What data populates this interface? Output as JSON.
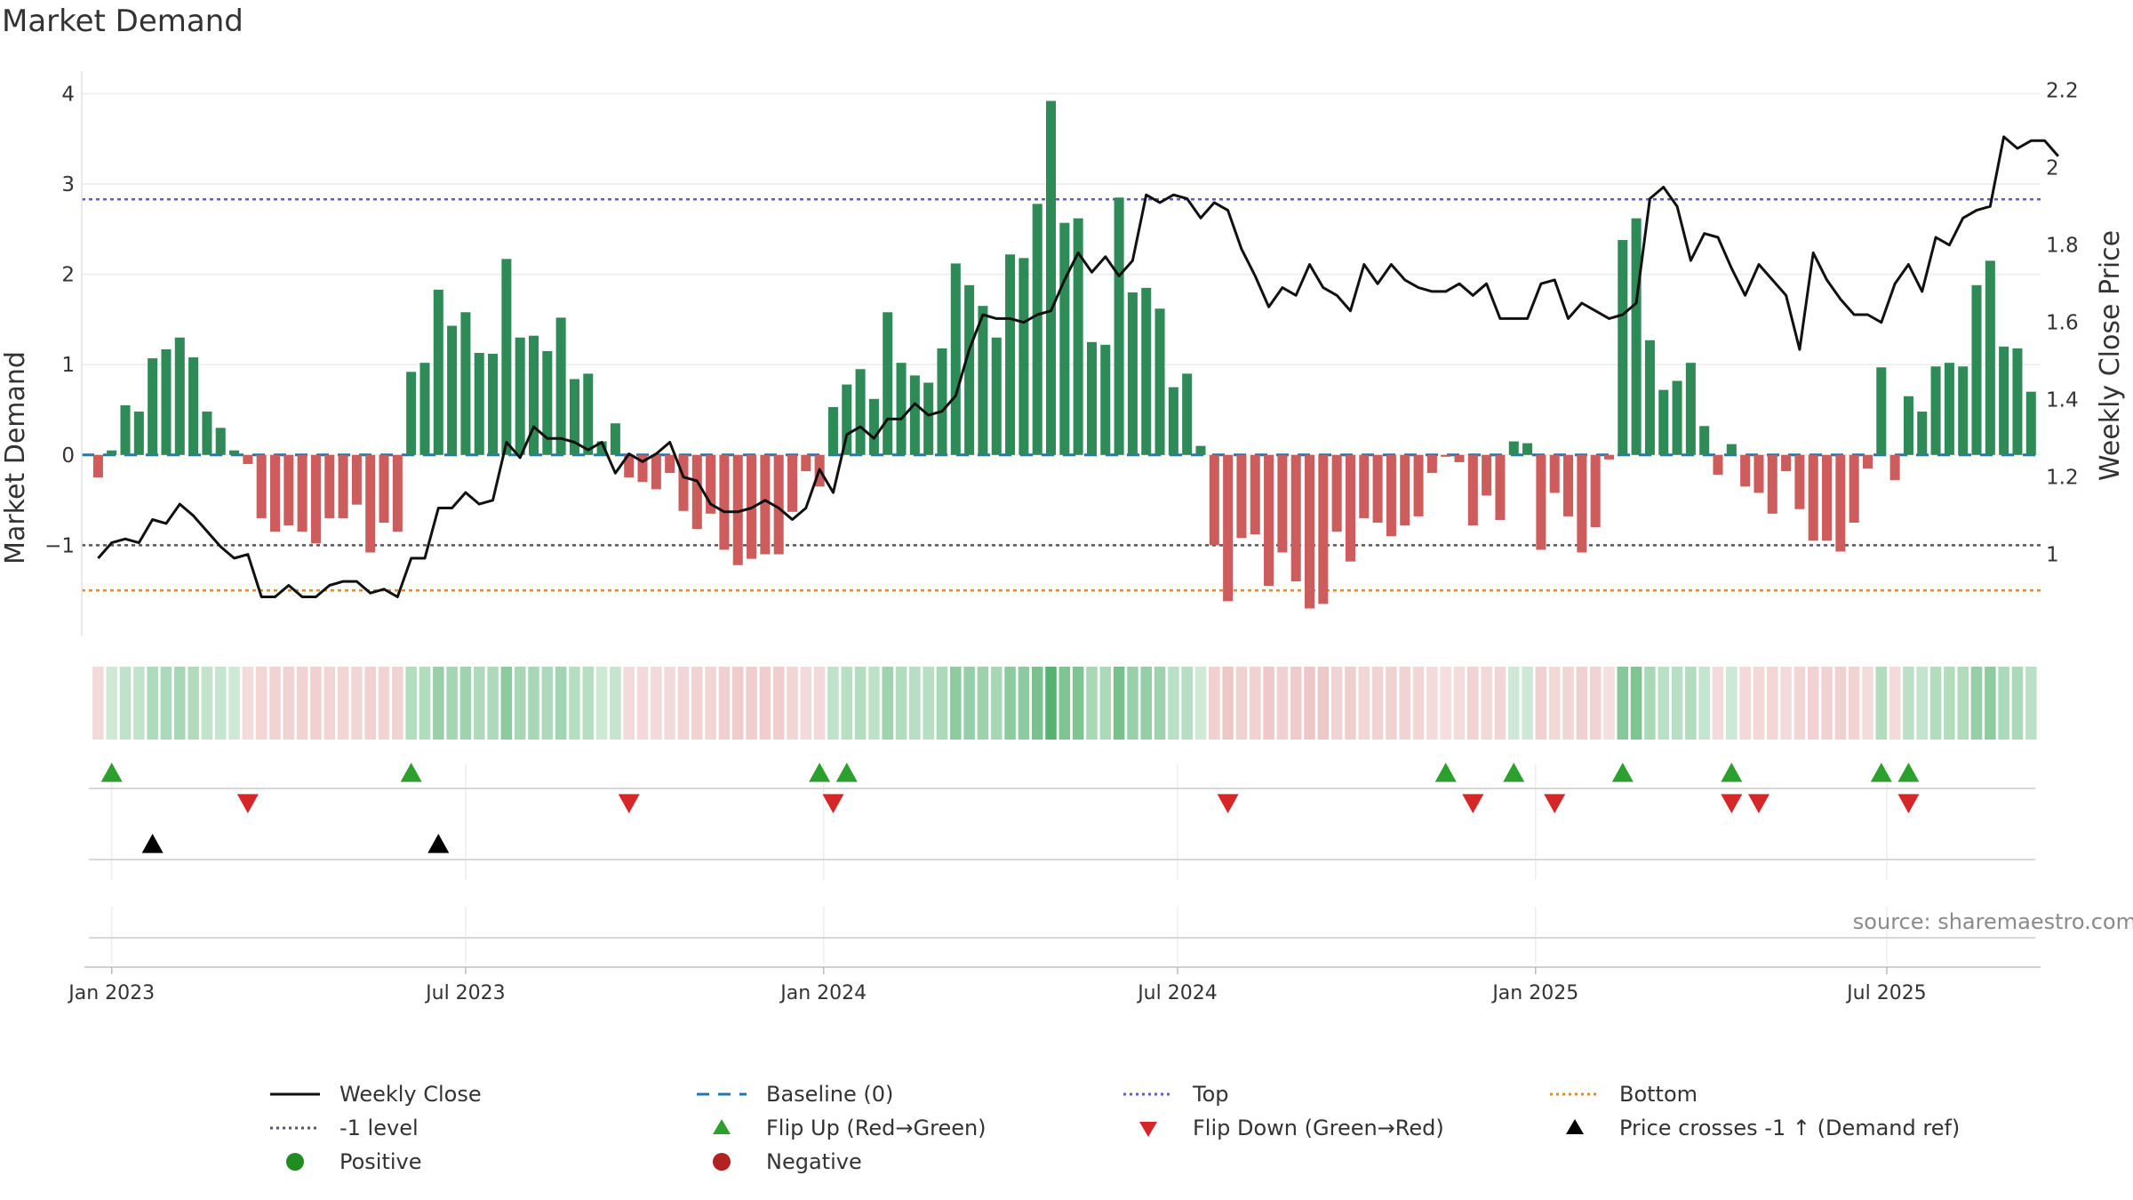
{
  "chart_data": {
    "type": "bar",
    "title": "Market Demand",
    "ylabel": "Market Demand",
    "ylabel_right": "Weekly Close Price",
    "ylim": [
      -2.0,
      4.25
    ],
    "ylim_right": [
      0.79,
      2.25
    ],
    "yticks": [
      -1,
      0,
      1,
      2,
      3,
      4
    ],
    "yticks_right": [
      1,
      1.2,
      1.4,
      1.6,
      1.8,
      2,
      2.2
    ],
    "ytick_labels": [
      "−1",
      "0",
      "1",
      "2",
      "3",
      "4"
    ],
    "ytick_labels_right": [
      "1",
      "1.2",
      "1.4",
      "1.6",
      "1.8",
      "2",
      "2.2"
    ],
    "xlim_weeks": [
      -1.2,
      142.7
    ],
    "xticks": [
      {
        "label": "Jan 2023",
        "week": 1
      },
      {
        "label": "Jul 2023",
        "week": 27
      },
      {
        "label": "Jan 2024",
        "week": 53.3
      },
      {
        "label": "Jul 2024",
        "week": 79.3
      },
      {
        "label": "Jan 2025",
        "week": 105.6
      },
      {
        "label": "Jul 2025",
        "week": 131.4
      }
    ],
    "reference_lines": {
      "top": 2.83,
      "minus_one": -1,
      "bottom": -1.5,
      "baseline": 0
    },
    "demand": [
      -0.25,
      0.05,
      0.55,
      0.48,
      1.07,
      1.17,
      1.3,
      1.08,
      0.48,
      0.3,
      0.05,
      -0.1,
      -0.7,
      -0.85,
      -0.78,
      -0.85,
      -0.98,
      -0.7,
      -0.7,
      -0.55,
      -1.08,
      -0.75,
      -0.85,
      0.92,
      1.02,
      1.83,
      1.43,
      1.58,
      1.13,
      1.12,
      2.17,
      1.3,
      1.32,
      1.15,
      1.52,
      0.84,
      0.9,
      0.15,
      0.35,
      -0.25,
      -0.3,
      -0.38,
      -0.2,
      -0.62,
      -0.82,
      -0.65,
      -1.05,
      -1.22,
      -1.15,
      -1.1,
      -1.1,
      -0.63,
      -0.18,
      -0.35,
      0.53,
      0.78,
      0.95,
      0.62,
      1.58,
      1.02,
      0.88,
      0.8,
      1.18,
      2.12,
      1.88,
      1.65,
      1.3,
      2.22,
      2.18,
      2.78,
      3.92,
      2.57,
      2.62,
      1.25,
      1.22,
      2.85,
      1.8,
      1.85,
      1.62,
      0.75,
      0.9,
      0.1,
      -1.0,
      -1.62,
      -0.92,
      -0.88,
      -1.45,
      -1.08,
      -1.4,
      -1.7,
      -1.65,
      -0.85,
      -1.18,
      -0.7,
      -0.75,
      -0.9,
      -0.78,
      -0.68,
      -0.2,
      -0.02,
      -0.08,
      -0.78,
      -0.45,
      -0.72,
      0.15,
      0.13,
      -1.05,
      -0.42,
      -0.68,
      -1.08,
      -0.8,
      -0.05,
      2.38,
      2.62,
      1.27,
      0.72,
      0.82,
      1.02,
      0.32,
      -0.22,
      0.12,
      -0.35,
      -0.42,
      -0.65,
      -0.18,
      -0.6,
      -0.95,
      -0.95,
      -1.07,
      -0.75,
      -0.15,
      0.97,
      -0.28,
      0.65,
      0.48,
      0.98,
      1.02,
      0.98,
      1.88,
      2.15,
      1.2,
      1.18,
      0.7
    ],
    "weekly_close": [
      0.99,
      1.03,
      1.04,
      1.03,
      1.09,
      1.08,
      1.13,
      1.1,
      1.06,
      1.02,
      0.99,
      1.0,
      0.89,
      0.89,
      0.92,
      0.89,
      0.89,
      0.92,
      0.93,
      0.93,
      0.9,
      0.91,
      0.89,
      0.99,
      0.99,
      1.12,
      1.12,
      1.16,
      1.13,
      1.14,
      1.29,
      1.25,
      1.33,
      1.3,
      1.3,
      1.29,
      1.27,
      1.29,
      1.21,
      1.26,
      1.24,
      1.26,
      1.29,
      1.2,
      1.19,
      1.13,
      1.11,
      1.11,
      1.12,
      1.14,
      1.12,
      1.09,
      1.12,
      1.22,
      1.16,
      1.31,
      1.33,
      1.3,
      1.35,
      1.35,
      1.39,
      1.36,
      1.37,
      1.41,
      1.53,
      1.62,
      1.61,
      1.61,
      1.6,
      1.62,
      1.63,
      1.71,
      1.78,
      1.73,
      1.77,
      1.72,
      1.76,
      1.93,
      1.91,
      1.93,
      1.92,
      1.87,
      1.91,
      1.89,
      1.79,
      1.72,
      1.64,
      1.69,
      1.67,
      1.75,
      1.69,
      1.67,
      1.63,
      1.75,
      1.7,
      1.75,
      1.71,
      1.69,
      1.68,
      1.68,
      1.7,
      1.67,
      1.7,
      1.61,
      1.61,
      1.61,
      1.7,
      1.71,
      1.61,
      1.65,
      1.63,
      1.61,
      1.62,
      1.65,
      1.92,
      1.95,
      1.9,
      1.76,
      1.83,
      1.82,
      1.74,
      1.67,
      1.75,
      1.71,
      1.67,
      1.53,
      1.78,
      1.71,
      1.66,
      1.62,
      1.62,
      1.6,
      1.7,
      1.75,
      1.68,
      1.82,
      1.8,
      1.87,
      1.89,
      1.9,
      2.08,
      2.05,
      2.07,
      2.07,
      2.03
    ],
    "heat_strip": "per-week color shade of Market Demand (green = positive, red = negative)",
    "events": {
      "flip_up_weeks": [
        1,
        23,
        53,
        55,
        99,
        104,
        112,
        120,
        131,
        133
      ],
      "flip_down_weeks": [
        11,
        39,
        54,
        83,
        101,
        107,
        120,
        122,
        133
      ],
      "price_crosses_minus_one_weeks": [
        4,
        25
      ]
    },
    "legend": {
      "weekly_close": "Weekly Close",
      "baseline": "Baseline (0)",
      "top": "Top",
      "bottom": "Bottom",
      "minus_one": "-1 level",
      "flip_up": "Flip Up (Red→Green)",
      "flip_down": "Flip Down (Green→Red)",
      "price_cross": "Price crosses -1 ↑ (Demand ref)",
      "positive": "Positive",
      "negative": "Negative"
    },
    "source": "source: sharemaestro.com"
  },
  "colors": {
    "positive_bar": "#2e8b57",
    "negative_bar": "#cd5c5c",
    "close_line": "#111111",
    "baseline": "#1f77b4",
    "top_line": "#5b5bd6",
    "minus_one_line": "#555566",
    "bottom_line": "#e68a1a",
    "flip_up": "#2ca02c",
    "flip_down": "#d62728",
    "price_cross": "#000000",
    "positive_dot": "#228b22",
    "negative_dot": "#b22222"
  }
}
